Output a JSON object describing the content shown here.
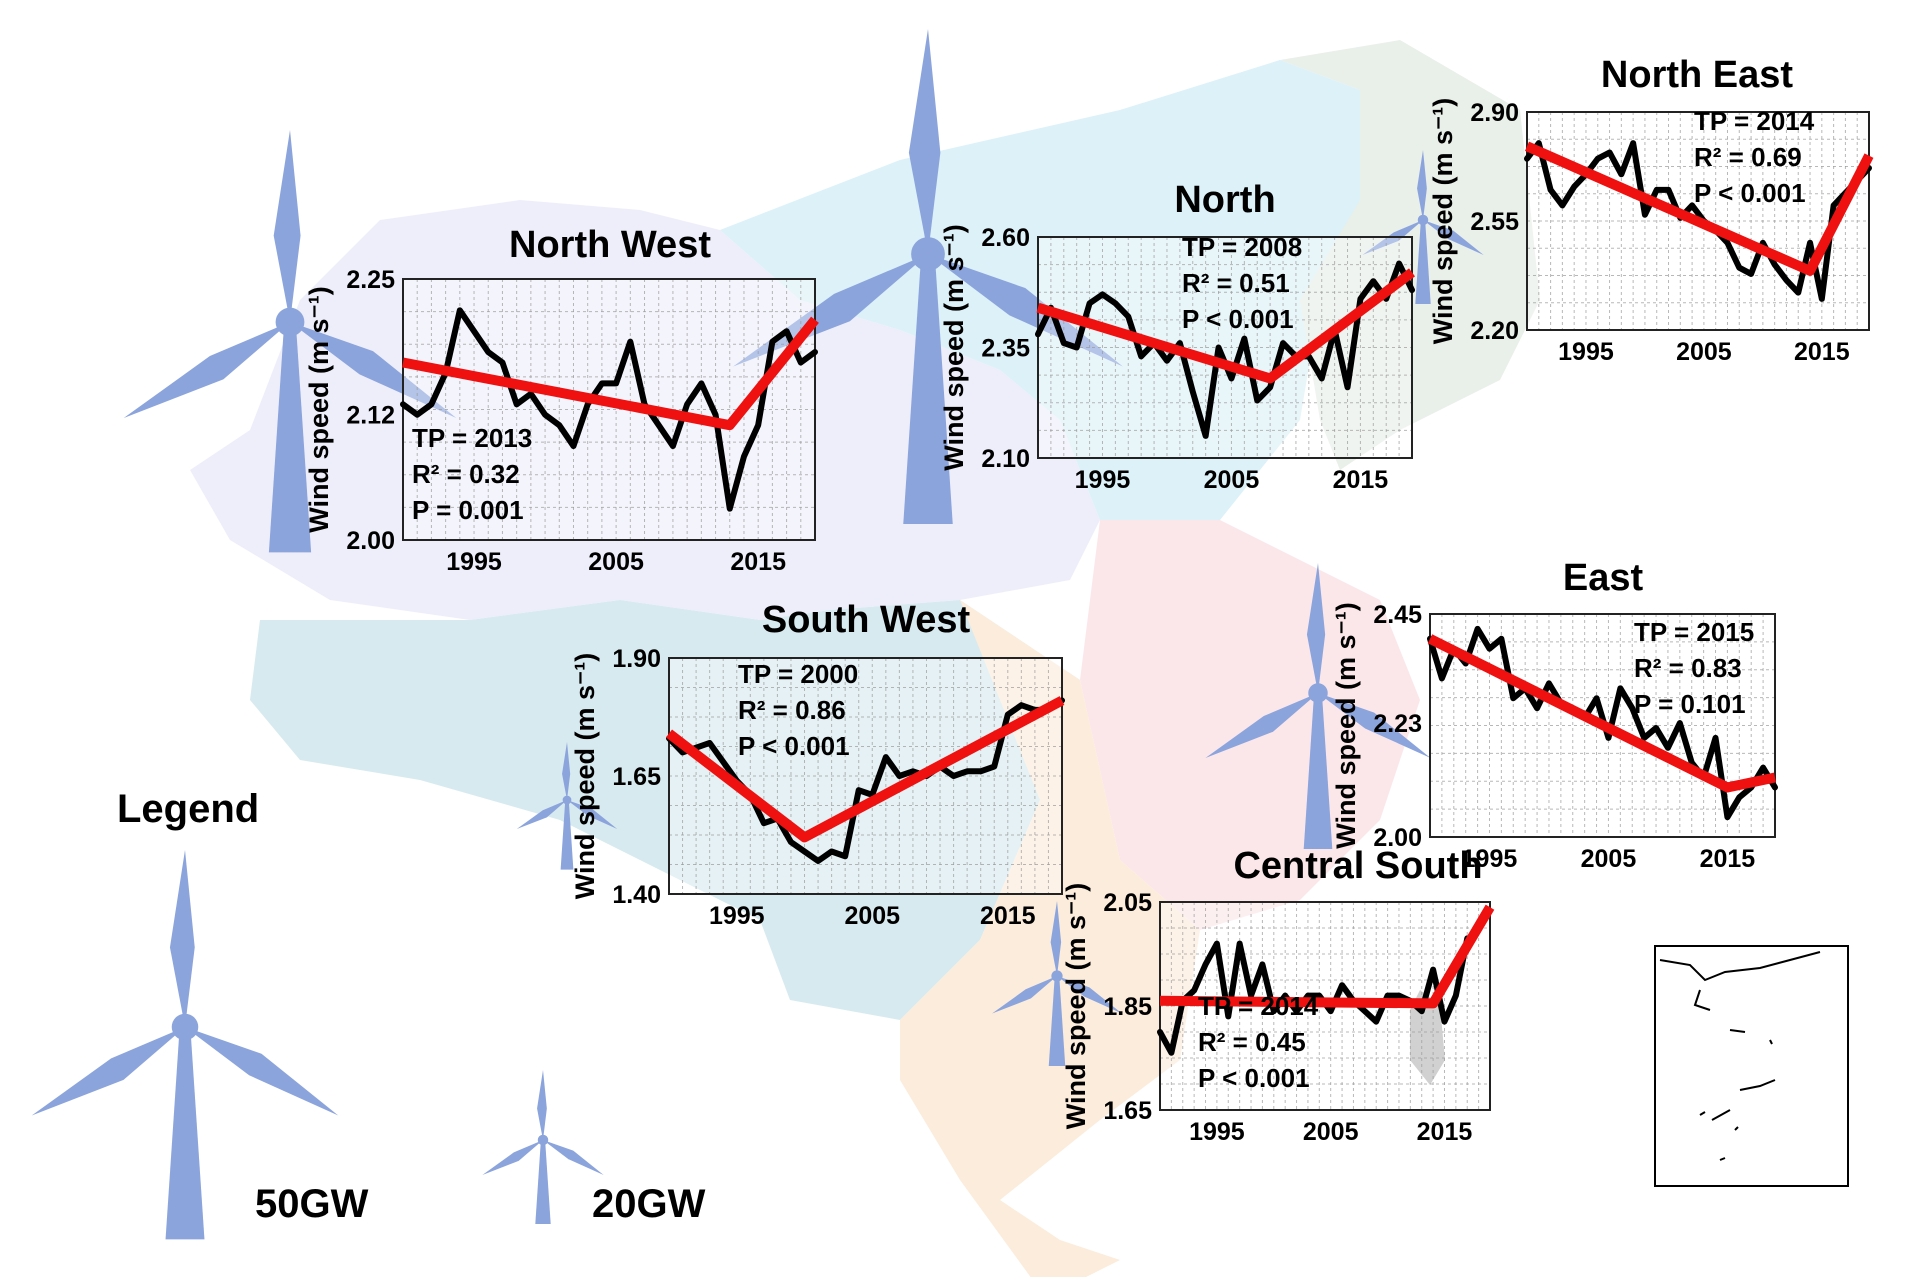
{
  "legend": {
    "title": "Legend",
    "large_label": "50GW",
    "small_label": "20GW"
  },
  "y_axis_label": "Wind speed (m s⁻¹)",
  "chart_data": [
    {
      "type": "line",
      "title": "North West",
      "ylabel": "Wind speed (m s⁻¹)",
      "ylim": [
        2.0,
        2.25
      ],
      "y_ticks": [
        "2.00",
        "2.12",
        "2.25"
      ],
      "xlim": [
        1990,
        2019
      ],
      "x_ticks": [
        "1995",
        "2005",
        "2015"
      ],
      "grid": true,
      "stats": [
        "TP = 2013",
        "R² = 0.32",
        "P = 0.001"
      ],
      "series": [
        {
          "x": [
            1990,
            1991,
            1992,
            1993,
            1994,
            1995,
            1996,
            1997,
            1998,
            1999,
            2000,
            2001,
            2002,
            2003,
            2004,
            2005,
            2006,
            2007,
            2008,
            2009,
            2010,
            2011,
            2012,
            2013,
            2014,
            2015,
            2016,
            2017,
            2018,
            2019
          ],
          "values": [
            2.13,
            2.12,
            2.13,
            2.16,
            2.22,
            2.2,
            2.18,
            2.17,
            2.13,
            2.14,
            2.12,
            2.11,
            2.09,
            2.13,
            2.15,
            2.15,
            2.19,
            2.13,
            2.11,
            2.09,
            2.13,
            2.15,
            2.12,
            2.03,
            2.08,
            2.11,
            2.19,
            2.2,
            2.17,
            2.18
          ]
        },
        {
          "x": [
            1990,
            2013,
            2019
          ],
          "values": [
            2.17,
            2.11,
            2.211
          ]
        }
      ]
    },
    {
      "type": "line",
      "title": "North",
      "ylabel": "Wind speed (m s⁻¹)",
      "ylim": [
        2.1,
        2.6
      ],
      "y_ticks": [
        "2.10",
        "2.35",
        "2.60"
      ],
      "xlim": [
        1990,
        2019
      ],
      "x_ticks": [
        "1995",
        "2005",
        "2015"
      ],
      "grid": true,
      "stats": [
        "TP = 2008",
        "R² = 0.51",
        "P < 0.001"
      ],
      "series": [
        {
          "x": [
            1990,
            1991,
            1992,
            1993,
            1994,
            1995,
            1996,
            1997,
            1998,
            1999,
            2000,
            2001,
            2002,
            2003,
            2004,
            2005,
            2006,
            2007,
            2008,
            2009,
            2010,
            2011,
            2012,
            2013,
            2014,
            2015,
            2016,
            2017,
            2018,
            2019
          ],
          "values": [
            2.38,
            2.44,
            2.36,
            2.35,
            2.45,
            2.47,
            2.45,
            2.42,
            2.33,
            2.36,
            2.32,
            2.36,
            2.25,
            2.15,
            2.35,
            2.28,
            2.37,
            2.23,
            2.26,
            2.36,
            2.33,
            2.33,
            2.28,
            2.39,
            2.26,
            2.46,
            2.5,
            2.46,
            2.54,
            2.48
          ]
        },
        {
          "x": [
            1990,
            2008,
            2019
          ],
          "values": [
            2.44,
            2.28,
            2.52
          ]
        }
      ]
    },
    {
      "type": "line",
      "title": "North East",
      "ylabel": "Wind speed (m s⁻¹)",
      "ylim": [
        2.2,
        2.9
      ],
      "y_ticks": [
        "2.20",
        "2.55",
        "2.90"
      ],
      "xlim": [
        1990,
        2019
      ],
      "x_ticks": [
        "1995",
        "2005",
        "2015"
      ],
      "grid": true,
      "stats": [
        "TP = 2014",
        "R² = 0.69",
        "P < 0.001"
      ],
      "series": [
        {
          "x": [
            1990,
            1991,
            1992,
            1993,
            1994,
            1995,
            1996,
            1997,
            1998,
            1999,
            2000,
            2001,
            2002,
            2003,
            2004,
            2005,
            2006,
            2007,
            2008,
            2009,
            2010,
            2011,
            2012,
            2013,
            2014,
            2015,
            2016,
            2017,
            2018,
            2019
          ],
          "values": [
            2.75,
            2.8,
            2.65,
            2.6,
            2.66,
            2.7,
            2.75,
            2.77,
            2.7,
            2.8,
            2.57,
            2.65,
            2.65,
            2.56,
            2.6,
            2.55,
            2.52,
            2.48,
            2.4,
            2.38,
            2.48,
            2.41,
            2.36,
            2.32,
            2.48,
            2.3,
            2.6,
            2.64,
            2.68,
            2.72
          ]
        },
        {
          "x": [
            1990,
            2014,
            2019
          ],
          "values": [
            2.79,
            2.39,
            2.76
          ]
        }
      ]
    },
    {
      "type": "line",
      "title": "South West",
      "ylabel": "Wind speed (m s⁻¹)",
      "ylim": [
        1.4,
        1.9
      ],
      "y_ticks": [
        "1.40",
        "1.65",
        "1.90"
      ],
      "xlim": [
        1990,
        2019
      ],
      "x_ticks": [
        "1995",
        "2005",
        "2015"
      ],
      "grid": true,
      "stats": [
        "TP = 2000",
        "R² = 0.86",
        "P < 0.001"
      ],
      "series": [
        {
          "x": [
            1990,
            1991,
            1992,
            1993,
            1994,
            1995,
            1996,
            1997,
            1998,
            1999,
            2000,
            2001,
            2002,
            2003,
            2004,
            2005,
            2006,
            2007,
            2008,
            2009,
            2010,
            2011,
            2012,
            2013,
            2014,
            2015,
            2016,
            2017,
            2018,
            2019
          ],
          "values": [
            1.73,
            1.7,
            1.71,
            1.72,
            1.68,
            1.64,
            1.61,
            1.55,
            1.56,
            1.51,
            1.49,
            1.47,
            1.49,
            1.48,
            1.62,
            1.61,
            1.69,
            1.65,
            1.66,
            1.65,
            1.67,
            1.65,
            1.66,
            1.66,
            1.67,
            1.78,
            1.8,
            1.79,
            1.79,
            1.81
          ]
        },
        {
          "x": [
            1990,
            2000,
            2019
          ],
          "values": [
            1.74,
            1.52,
            1.81
          ]
        }
      ]
    },
    {
      "type": "line",
      "title": "East",
      "ylabel": "Wind speed (m s⁻¹)",
      "ylim": [
        2.0,
        2.45
      ],
      "y_ticks": [
        "2.00",
        "2.23",
        "2.45"
      ],
      "xlim": [
        1990,
        2019
      ],
      "x_ticks": [
        "1995",
        "2005",
        "2015"
      ],
      "grid": true,
      "stats": [
        "TP = 2015",
        "R² = 0.83",
        "P = 0.101"
      ],
      "series": [
        {
          "x": [
            1990,
            1991,
            1992,
            1993,
            1994,
            1995,
            1996,
            1997,
            1998,
            1999,
            2000,
            2001,
            2002,
            2003,
            2004,
            2005,
            2006,
            2007,
            2008,
            2009,
            2010,
            2011,
            2012,
            2013,
            2014,
            2015,
            2016,
            2017,
            2018,
            2019
          ],
          "values": [
            2.4,
            2.32,
            2.38,
            2.35,
            2.42,
            2.38,
            2.4,
            2.28,
            2.3,
            2.26,
            2.31,
            2.27,
            2.26,
            2.24,
            2.28,
            2.2,
            2.3,
            2.26,
            2.2,
            2.22,
            2.18,
            2.23,
            2.15,
            2.12,
            2.2,
            2.04,
            2.08,
            2.1,
            2.14,
            2.1
          ]
        },
        {
          "x": [
            1990,
            2015,
            2019
          ],
          "values": [
            2.4,
            2.1,
            2.12
          ]
        }
      ]
    },
    {
      "type": "line",
      "title": "Central South",
      "ylabel": "Wind speed (m s⁻¹)",
      "ylim": [
        1.65,
        2.05
      ],
      "y_ticks": [
        "1.65",
        "1.85",
        "2.05"
      ],
      "xlim": [
        1990,
        2019
      ],
      "x_ticks": [
        "1995",
        "2005",
        "2015"
      ],
      "grid": true,
      "stats": [
        "TP = 2014",
        "R² = 0.45",
        "P < 0.001"
      ],
      "series": [
        {
          "x": [
            1990,
            1991,
            1992,
            1993,
            1994,
            1995,
            1996,
            1997,
            1998,
            1999,
            2000,
            2001,
            2002,
            2003,
            2004,
            2005,
            2006,
            2007,
            2008,
            2009,
            2010,
            2011,
            2012,
            2013,
            2014,
            2015,
            2016,
            2017
          ],
          "values": [
            1.8,
            1.76,
            1.86,
            1.88,
            1.93,
            1.97,
            1.83,
            1.97,
            1.87,
            1.93,
            1.84,
            1.87,
            1.84,
            1.87,
            1.87,
            1.84,
            1.89,
            1.86,
            1.84,
            1.82,
            1.87,
            1.87,
            1.86,
            1.84,
            1.92,
            1.82,
            1.87,
            1.98
          ]
        },
        {
          "x": [
            1990,
            2014,
            2019
          ],
          "values": [
            1.86,
            1.855,
            2.04
          ]
        }
      ]
    }
  ]
}
